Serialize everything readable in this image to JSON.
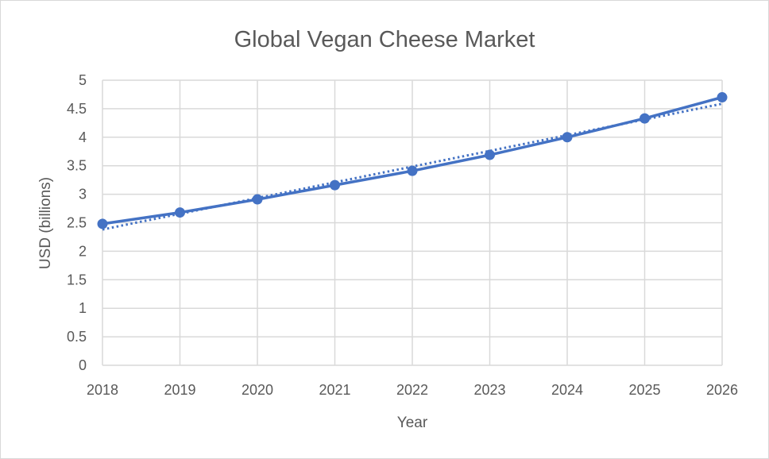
{
  "chart_data": {
    "type": "line",
    "title": "Global Vegan Cheese Market",
    "xlabel": "Year",
    "ylabel": "USD (billions)",
    "categories": [
      "2018",
      "2019",
      "2020",
      "2021",
      "2022",
      "2023",
      "2024",
      "2025",
      "2026"
    ],
    "ylim": [
      0,
      5
    ],
    "yticks": [
      "0",
      "0.5",
      "1",
      "1.5",
      "2",
      "2.5",
      "3",
      "3.5",
      "4",
      "4.5",
      "5"
    ],
    "grid": true,
    "legend": "none",
    "series": [
      {
        "values": [
          2.48,
          2.68,
          2.91,
          3.16,
          3.41,
          3.69,
          4.0,
          4.33,
          4.7
        ],
        "color": "#4472c4",
        "marker": "circle"
      }
    ],
    "trendline": {
      "kind": "linear",
      "style": "dotted",
      "color": "#4472c4"
    }
  }
}
